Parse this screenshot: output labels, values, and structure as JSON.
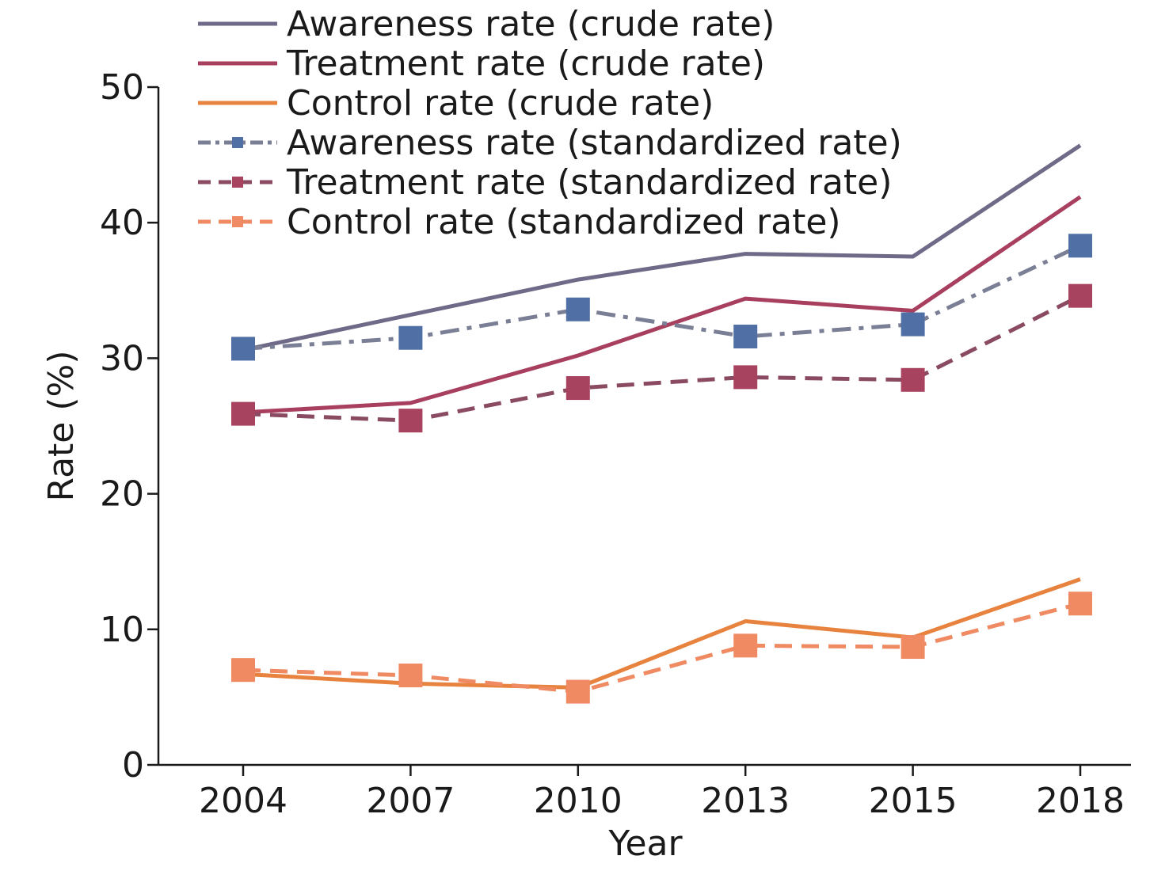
{
  "chart_data": {
    "type": "line",
    "xlabel": "Year",
    "ylabel": "Rate (%)",
    "categories": [
      "2004",
      "2007",
      "2010",
      "2013",
      "2015",
      "2018"
    ],
    "ylim": [
      0,
      50
    ],
    "yticks": [
      0,
      10,
      20,
      30,
      40,
      50
    ],
    "grid": false,
    "legend_position": "top",
    "series": [
      {
        "name": "Awareness rate (crude rate)",
        "color": "#6e6a87",
        "style": "solid",
        "marker": "none",
        "values": [
          30.6,
          33.2,
          35.8,
          37.7,
          37.5,
          45.7
        ]
      },
      {
        "name": "Treatment rate (crude rate)",
        "color": "#a83f5e",
        "style": "solid",
        "marker": "none",
        "values": [
          26.0,
          26.7,
          30.2,
          34.4,
          33.5,
          41.9
        ]
      },
      {
        "name": "Control rate (crude rate)",
        "color": "#e8833f",
        "style": "solid",
        "marker": "none",
        "values": [
          6.7,
          6.0,
          5.7,
          10.6,
          9.4,
          13.7
        ]
      },
      {
        "name": "Awareness rate (standardized rate)",
        "color": "#4f6fa5",
        "line_color": "#7a7f96",
        "style": "dashdot",
        "marker": "square",
        "values": [
          30.7,
          31.5,
          33.6,
          31.6,
          32.5,
          38.3
        ]
      },
      {
        "name": "Treatment rate (standardized rate)",
        "color": "#a8435f",
        "line_color": "#8a4a62",
        "style": "dashed",
        "marker": "square",
        "values": [
          25.9,
          25.4,
          27.8,
          28.6,
          28.4,
          34.6
        ]
      },
      {
        "name": "Control rate (standardized rate)",
        "color": "#ef8a63",
        "line_color": "#ef8a63",
        "style": "dashed",
        "marker": "square",
        "values": [
          7.0,
          6.6,
          5.4,
          8.8,
          8.7,
          11.9
        ]
      }
    ]
  }
}
